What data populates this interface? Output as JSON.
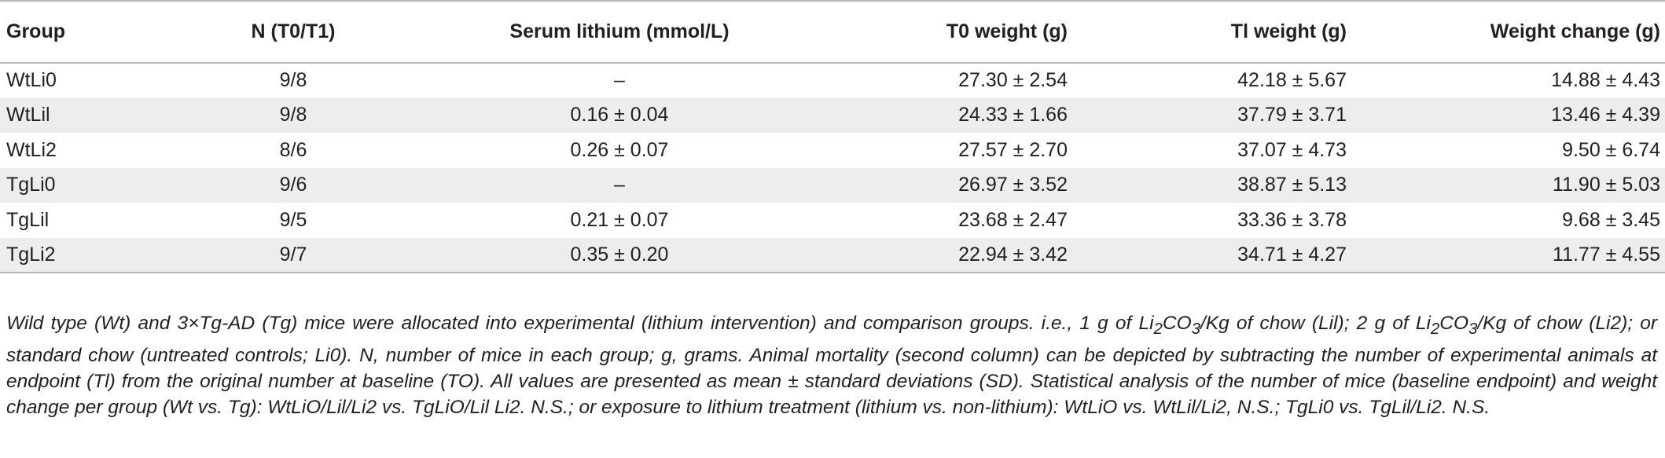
{
  "table": {
    "headers": [
      "Group",
      "N (T0/T1)",
      "Serum lithium (mmol/L)",
      "T0 weight (g)",
      "Tl weight (g)",
      "Weight change (g)"
    ],
    "rows": [
      [
        "WtLi0",
        "9/8",
        "–",
        "27.30 ± 2.54",
        "42.18 ± 5.67",
        "14.88 ± 4.43"
      ],
      [
        "WtLil",
        "9/8",
        "0.16 ± 0.04",
        "24.33 ± 1.66",
        "37.79 ± 3.71",
        "13.46 ± 4.39"
      ],
      [
        "WtLi2",
        "8/6",
        "0.26 ± 0.07",
        "27.57 ± 2.70",
        "37.07 ± 4.73",
        "9.50 ± 6.74"
      ],
      [
        "TgLi0",
        "9/6",
        "–",
        "26.97 ± 3.52",
        "38.87 ± 5.13",
        "11.90 ± 5.03"
      ],
      [
        "TgLil",
        "9/5",
        "0.21 ± 0.07",
        "23.68 ± 2.47",
        "33.36 ± 3.78",
        "9.68 ± 3.45"
      ],
      [
        "TgLi2",
        "9/7",
        "0.35 ± 0.20",
        "22.94 ± 3.42",
        "34.71 ± 4.27",
        "11.77 ± 4.55"
      ]
    ]
  },
  "footnote": {
    "p1": "Wild type (Wt) and 3×Tg-AD (Tg) mice were allocated into experimental (lithium intervention) and comparison groups. i.e., 1 g of Li",
    "s1": "2",
    "p2": "CO",
    "s2": "3",
    "p3": "/Kg of chow (Lil); 2 g of Li",
    "s3": "2",
    "p4": "CO",
    "s4": "3",
    "p5": "/Kg of chow (Li2); or standard chow (untreated controls; Li0). N, number of mice in each group; g, grams. Animal mortality (second column) can be depicted by subtracting the number of experimental animals at endpoint (Tl) from the original number at baseline (TO). All values are presented as mean ± standard deviations (SD). Statistical analysis of the number of mice (baseline endpoint) and weight change per group (Wt vs. Tg): WtLiO/Lil/Li2 vs. TgLiO/Lil Li2. N.S.; or exposure to lithium treatment (lithium vs. non-lithium): WtLiO vs. WtLil/Li2, N.S.; TgLi0 vs. TgLil/Li2. N.S."
  }
}
